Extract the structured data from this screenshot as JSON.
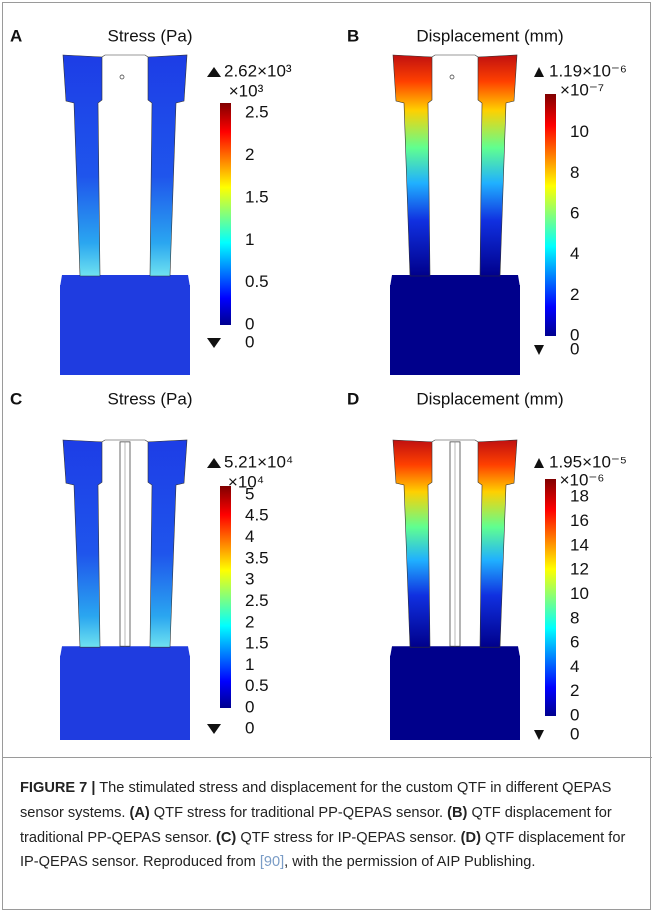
{
  "figure": {
    "panels": [
      {
        "label": "A",
        "title": "Stress (Pa)",
        "kind": "stress",
        "colorbar": {
          "max_label": "2.62×10³",
          "multiplier": "×10³",
          "lim": [
            0,
            2.62
          ],
          "ticks": [
            0,
            0.5,
            1,
            1.5,
            2,
            2.5
          ],
          "min_label": 0
        }
      },
      {
        "label": "B",
        "title": "Displacement (mm)",
        "kind": "displacement",
        "colorbar": {
          "max_label": "1.19×10⁻⁶",
          "multiplier": "×10⁻⁷",
          "lim": [
            0,
            11.9
          ],
          "ticks": [
            0,
            2,
            4,
            6,
            8,
            10
          ],
          "min_label": 0
        }
      },
      {
        "label": "C",
        "title": "Stress (Pa)",
        "kind": "stress",
        "colorbar": {
          "max_label": "5.21×10⁴",
          "multiplier": "×10⁴",
          "lim": [
            0,
            5.21
          ],
          "ticks": [
            0,
            0.5,
            1,
            1.5,
            2,
            2.5,
            3,
            3.5,
            4,
            4.5,
            5
          ],
          "min_label": 0
        }
      },
      {
        "label": "D",
        "title": "Displacement (mm)",
        "kind": "displacement",
        "colorbar": {
          "max_label": "1.95×10⁻⁵",
          "multiplier": "×10⁻⁶",
          "lim": [
            0,
            19.5
          ],
          "ticks": [
            0,
            2,
            4,
            6,
            8,
            10,
            12,
            14,
            16,
            18
          ],
          "min_label": 0
        }
      }
    ],
    "caption": [
      {
        "text": "FIGURE 7 |",
        "style": "bold"
      },
      {
        "text": " The stimulated stress and displacement for the custom QTF in different QEPAS sensor systems. ",
        "style": "normal"
      },
      {
        "text": "(A)",
        "style": "bold"
      },
      {
        "text": " QTF stress for traditional PP-QEPAS sensor. ",
        "style": "normal"
      },
      {
        "text": "(B)",
        "style": "bold"
      },
      {
        "text": " QTF displacement for traditional PP-QEPAS sensor. ",
        "style": "normal"
      },
      {
        "text": "(C)",
        "style": "bold"
      },
      {
        "text": " QTF stress for IP-QEPAS sensor. ",
        "style": "normal"
      },
      {
        "text": "(D)",
        "style": "bold"
      },
      {
        "text": " QTF displacement for IP-QEPAS sensor. Reproduced from ",
        "style": "normal"
      },
      {
        "text": "[90]",
        "style": "ref"
      },
      {
        "text": ", with the permission of AIP Publishing.",
        "style": "normal"
      }
    ]
  }
}
